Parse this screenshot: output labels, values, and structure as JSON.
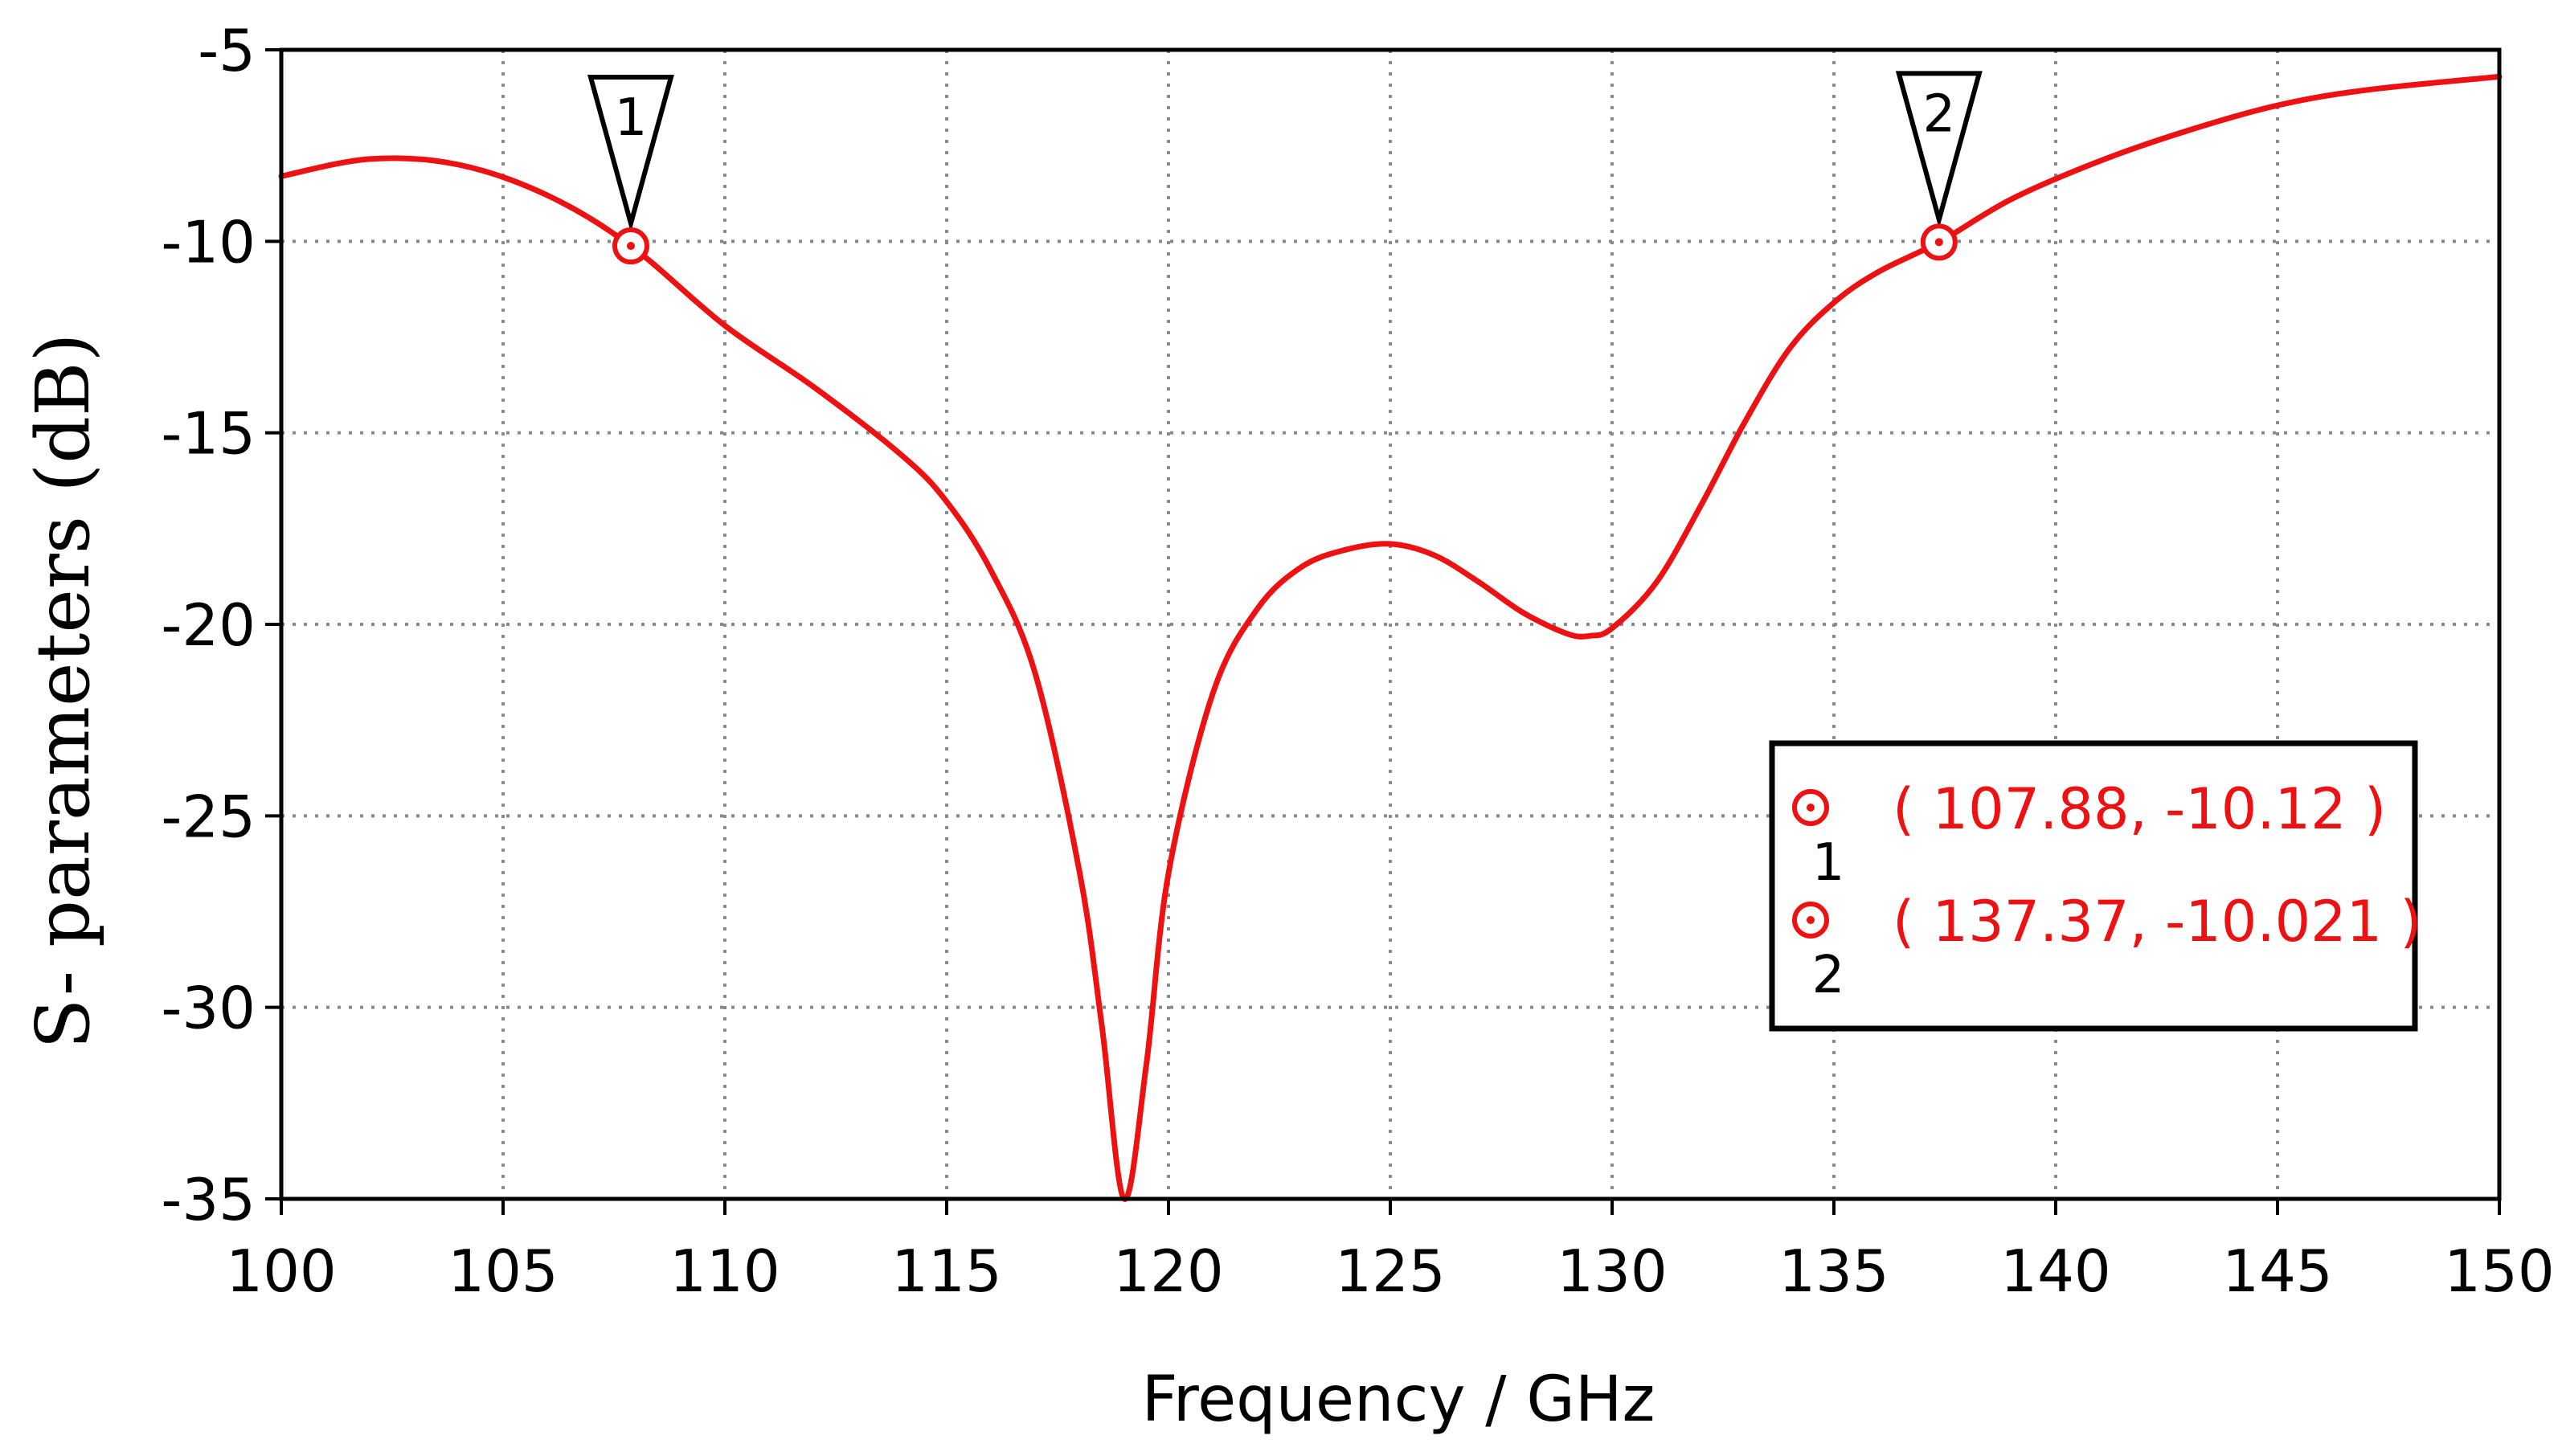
{
  "chart_data": {
    "type": "line",
    "xlabel": "Frequency / GHz",
    "ylabel": "S- parameters (dB)",
    "xlim": [
      100,
      150
    ],
    "ylim": [
      -35,
      -5
    ],
    "x_ticks": [
      100,
      105,
      110,
      115,
      120,
      125,
      130,
      135,
      140,
      145,
      150
    ],
    "y_ticks": [
      -5,
      -10,
      -15,
      -20,
      -25,
      -30,
      -35
    ],
    "x_tick_labels": [
      "100",
      "105",
      "110",
      "115",
      "120",
      "125",
      "130",
      "135",
      "140",
      "145",
      "150"
    ],
    "y_tick_labels": [
      "-5",
      "-10",
      "-15",
      "-20",
      "-25",
      "-30",
      "-35"
    ],
    "grid": true,
    "grid_style": "dotted",
    "series": [
      {
        "color": "#ee1111",
        "x": [
          100,
          102,
          104,
          106,
          107.88,
          110,
          112,
          114,
          115,
          116,
          117,
          118,
          118.5,
          119,
          119.5,
          120,
          121,
          122,
          123,
          124,
          125,
          126,
          127,
          128,
          129,
          129.5,
          130,
          131,
          132,
          133,
          134,
          135,
          136,
          137.37,
          139,
          141,
          143,
          145,
          147,
          150
        ],
        "y": [
          -8.3,
          -7.85,
          -8.0,
          -8.8,
          -10.12,
          -12.2,
          -13.8,
          -15.6,
          -16.8,
          -18.6,
          -21.3,
          -26.5,
          -30.5,
          -35,
          -31.5,
          -26.5,
          -21.8,
          -19.6,
          -18.5,
          -18.05,
          -17.9,
          -18.2,
          -18.9,
          -19.7,
          -20.25,
          -20.3,
          -20.1,
          -18.9,
          -16.9,
          -14.7,
          -12.8,
          -11.6,
          -10.8,
          -10.021,
          -8.9,
          -7.9,
          -7.1,
          -6.45,
          -6.05,
          -5.7
        ]
      }
    ],
    "markers": [
      {
        "id": "1",
        "x": 107.88,
        "y": -10.12,
        "label": "( 107.88, -10.12 )"
      },
      {
        "id": "2",
        "x": 137.37,
        "y": -10.021,
        "label": "( 137.37, -10.021 )"
      }
    ],
    "legend_placement": "center-right"
  },
  "colors": {
    "curve": "#ee1111",
    "marker": "#ee1111",
    "axis": "#000000",
    "grid": "#8a8a8a",
    "legend_border": "#000000"
  }
}
